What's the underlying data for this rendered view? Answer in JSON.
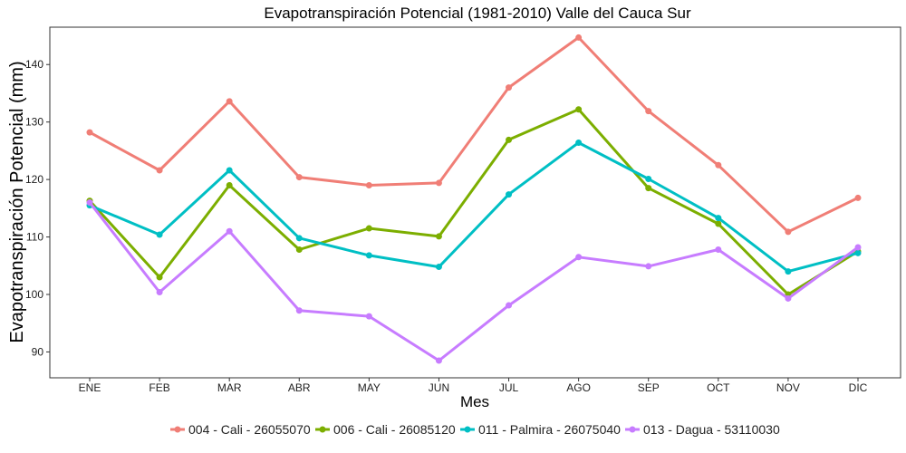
{
  "chart_data": {
    "type": "line",
    "title": "Evapotranspiración Potencial (1981-2010)  Valle del Cauca Sur",
    "xlabel": "Mes",
    "ylabel": "Evapotranspiración Potencial  (mm)",
    "categories": [
      "ENE",
      "FEB",
      "MAR",
      "ABR",
      "MAY",
      "JUN",
      "JUL",
      "AGO",
      "SEP",
      "OCT",
      "NOV",
      "DIC"
    ],
    "ylim": [
      85.5,
      146.5
    ],
    "yticks": [
      90,
      100,
      110,
      120,
      130,
      140
    ],
    "grid": false,
    "legend_position": "bottom",
    "series": [
      {
        "name": "004 - Cali - 26055070",
        "color": "#F07E76",
        "values": [
          128.2,
          121.6,
          133.6,
          120.4,
          119.0,
          119.4,
          136.0,
          144.7,
          131.9,
          122.5,
          110.9,
          116.8
        ]
      },
      {
        "name": "006 - Cali - 26085120",
        "color": "#7CAE00",
        "values": [
          116.3,
          103.0,
          119.0,
          107.8,
          111.5,
          110.1,
          126.9,
          132.2,
          118.5,
          112.3,
          100.0,
          107.5
        ]
      },
      {
        "name": "011 - Palmira - 26075040",
        "color": "#00BFC4",
        "values": [
          115.5,
          110.4,
          121.6,
          109.8,
          106.8,
          104.8,
          117.4,
          126.4,
          120.1,
          113.3,
          104.0,
          107.2
        ]
      },
      {
        "name": "013 - Dagua - 53110030",
        "color": "#C77CFF",
        "values": [
          116.0,
          100.4,
          111.0,
          97.2,
          96.2,
          88.5,
          98.1,
          106.5,
          104.9,
          107.8,
          99.3,
          108.2
        ]
      }
    ]
  }
}
